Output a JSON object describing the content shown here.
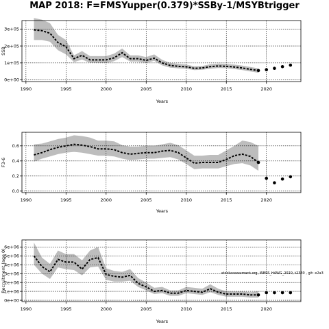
{
  "title": "MAP 2018: F=FMSYupper(0.379)*SSBy-1/MSYBtrigger",
  "watermark": "stockassessment.org, WBSS_HAWG_2020, t2330 , git: e2a3",
  "chart_data": [
    {
      "type": "line",
      "ylabel": "SSB",
      "xlabel": "Years",
      "xlim": [
        1989.5,
        2024.3
      ],
      "ylim": [
        -10000,
        350000
      ],
      "yticks": [
        0,
        100000,
        200000,
        300000
      ],
      "ytick_labels": [
        "0e+00",
        "1e+05",
        "2e+05",
        "3e+05"
      ],
      "xticks": [
        1990,
        1995,
        2000,
        2005,
        2010,
        2015,
        2020
      ],
      "grid": true,
      "x": [
        1991,
        1992,
        1993,
        1994,
        1995,
        1996,
        1997,
        1998,
        1999,
        2000,
        2001,
        2002,
        2003,
        2004,
        2005,
        2006,
        2007,
        2008,
        2009,
        2010,
        2011,
        2012,
        2013,
        2014,
        2015,
        2016,
        2017,
        2018,
        2019
      ],
      "estimate": [
        295000,
        290000,
        275000,
        220000,
        195000,
        125000,
        145000,
        118000,
        118000,
        118000,
        130000,
        160000,
        125000,
        125000,
        115000,
        128000,
        100000,
        85000,
        80000,
        77000,
        68000,
        70000,
        78000,
        82000,
        80000,
        76000,
        70000,
        62000,
        55000
      ],
      "lower": [
        235000,
        235000,
        225000,
        175000,
        150000,
        105000,
        120000,
        100000,
        100000,
        100000,
        110000,
        135000,
        108000,
        108000,
        100000,
        112000,
        85000,
        72000,
        68000,
        66000,
        58000,
        60000,
        66000,
        70000,
        69000,
        64000,
        58000,
        50000,
        42000
      ],
      "upper": [
        365000,
        355000,
        335000,
        265000,
        235000,
        145000,
        170000,
        140000,
        140000,
        140000,
        155000,
        185000,
        145000,
        145000,
        135000,
        150000,
        118000,
        100000,
        95000,
        90000,
        80000,
        82000,
        92000,
        96000,
        94000,
        90000,
        84000,
        76000,
        68000
      ],
      "projection": {
        "x": [
          2019,
          2020,
          2021,
          2022,
          2023
        ],
        "values": [
          55000,
          60000,
          68000,
          78000,
          87000
        ]
      }
    },
    {
      "type": "line",
      "ylabel": "F3-6",
      "xlabel": "Years",
      "xlim": [
        1989.5,
        2024.3
      ],
      "ylim": [
        -0.02,
        0.78
      ],
      "yticks": [
        0.0,
        0.2,
        0.4,
        0.6
      ],
      "ytick_labels": [
        "0.0",
        "0.2",
        "0.4",
        "0.6"
      ],
      "xticks": [
        1990,
        1995,
        2000,
        2005,
        2010,
        2015,
        2020
      ],
      "grid": true,
      "x": [
        1991,
        1992,
        1993,
        1994,
        1995,
        1996,
        1997,
        1998,
        1999,
        2000,
        2001,
        2002,
        2003,
        2004,
        2005,
        2006,
        2007,
        2008,
        2009,
        2010,
        2011,
        2012,
        2013,
        2014,
        2015,
        2016,
        2017,
        2018,
        2019
      ],
      "estimate": [
        0.48,
        0.51,
        0.55,
        0.58,
        0.6,
        0.62,
        0.61,
        0.59,
        0.56,
        0.56,
        0.55,
        0.51,
        0.49,
        0.5,
        0.51,
        0.51,
        0.53,
        0.54,
        0.51,
        0.44,
        0.37,
        0.38,
        0.38,
        0.38,
        0.42,
        0.47,
        0.49,
        0.46,
        0.38
      ],
      "lower": [
        0.39,
        0.43,
        0.46,
        0.49,
        0.51,
        0.52,
        0.51,
        0.49,
        0.47,
        0.47,
        0.46,
        0.43,
        0.41,
        0.42,
        0.43,
        0.43,
        0.44,
        0.45,
        0.42,
        0.36,
        0.29,
        0.3,
        0.3,
        0.3,
        0.33,
        0.36,
        0.37,
        0.34,
        0.27
      ],
      "upper": [
        0.62,
        0.63,
        0.66,
        0.69,
        0.71,
        0.74,
        0.73,
        0.71,
        0.67,
        0.67,
        0.66,
        0.61,
        0.59,
        0.59,
        0.6,
        0.6,
        0.62,
        0.64,
        0.61,
        0.54,
        0.47,
        0.47,
        0.48,
        0.48,
        0.54,
        0.6,
        0.67,
        0.65,
        0.6
      ],
      "projection": {
        "x": [
          2019,
          2020,
          2021,
          2022,
          2023
        ],
        "values": [
          0.38,
          0.17,
          0.11,
          0.16,
          0.19
        ]
      }
    },
    {
      "type": "line",
      "ylabel": "Recruitment (age 0)",
      "xlabel": "Years",
      "xlim": [
        1989.5,
        2024.3
      ],
      "ylim": [
        -150000,
        6800000
      ],
      "yticks": [
        0,
        1000000,
        2000000,
        3000000,
        4000000,
        5000000,
        6000000
      ],
      "ytick_labels": [
        "0e+00",
        "1e+06",
        "2e+06",
        "3e+06",
        "4e+06",
        "5e+06",
        "6e+06"
      ],
      "xticks": [
        1990,
        1995,
        2000,
        2005,
        2010,
        2015,
        2020
      ],
      "grid": true,
      "x": [
        1991,
        1992,
        1993,
        1994,
        1995,
        1996,
        1997,
        1998,
        1999,
        2000,
        2001,
        2002,
        2003,
        2004,
        2005,
        2006,
        2007,
        2008,
        2009,
        2010,
        2011,
        2012,
        2013,
        2014,
        2015,
        2016,
        2017,
        2018,
        2019
      ],
      "estimate": [
        5000000,
        3800000,
        3200000,
        4600000,
        4300000,
        4300000,
        3500000,
        4600000,
        4800000,
        2900000,
        2700000,
        2600000,
        2800000,
        1900000,
        1500000,
        1000000,
        1100000,
        800000,
        800000,
        1100000,
        1000000,
        900000,
        1300000,
        900000,
        700000,
        700000,
        700000,
        600000,
        600000
      ],
      "lower": [
        4000000,
        3000000,
        2400000,
        3700000,
        3500000,
        3400000,
        2800000,
        3700000,
        3800000,
        2300000,
        2100000,
        2100000,
        2200000,
        1500000,
        1100000,
        700000,
        800000,
        500000,
        500000,
        800000,
        700000,
        600000,
        900000,
        600000,
        400000,
        400000,
        400000,
        300000,
        300000
      ],
      "upper": [
        6500000,
        4800000,
        4100000,
        5600000,
        5200000,
        5200000,
        4500000,
        5600000,
        6000000,
        3600000,
        3300000,
        3200000,
        3500000,
        2500000,
        2000000,
        1400000,
        1500000,
        1100000,
        1100000,
        1500000,
        1400000,
        1300000,
        1800000,
        1300000,
        1000000,
        1000000,
        1000000,
        900000,
        1000000
      ],
      "projection": {
        "x": [
          2019,
          2020,
          2021,
          2022,
          2023
        ],
        "values": [
          600000,
          850000,
          850000,
          850000,
          850000
        ]
      }
    }
  ]
}
